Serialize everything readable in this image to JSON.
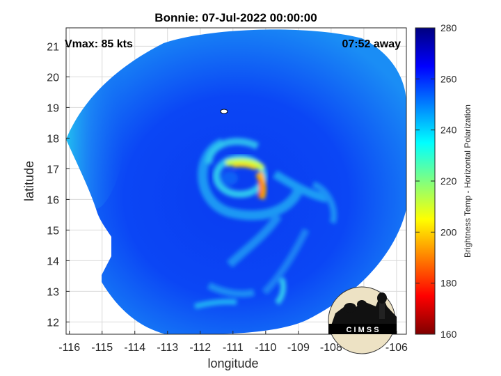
{
  "chart_data": {
    "type": "heatmap",
    "title": "Bonnie: 07-Jul-2022 00:00:00",
    "annotations": {
      "top_left": "Vmax: 85 kts",
      "top_right": "07:52 away"
    },
    "xlabel": "longitude",
    "ylabel": "latitude",
    "xlim": [
      -116.1,
      -105.7
    ],
    "ylim": [
      11.6,
      21.6
    ],
    "xticks": [
      -116,
      -115,
      -114,
      -113,
      -112,
      -111,
      -110,
      -109,
      -108,
      -107,
      -106
    ],
    "yticks": [
      12,
      13,
      14,
      15,
      16,
      17,
      18,
      19,
      20,
      21
    ],
    "grid": true,
    "colorbar": {
      "label": "Brightness Temp - Horizontal Polarization",
      "range": [
        160,
        280
      ],
      "ticks": [
        160,
        180,
        200,
        220,
        240,
        260,
        280
      ],
      "colormap": "jet",
      "colors": [
        "#7f0000",
        "#ff0000",
        "#ff8000",
        "#ffff00",
        "#80ff80",
        "#00ffff",
        "#0080ff",
        "#0000ff",
        "#00007f"
      ]
    },
    "background_tb": 258,
    "swath_edge_tb": 240,
    "storm_center": {
      "lon": -110.8,
      "lat": 16.7
    },
    "cold_features": [
      {
        "name": "eyewall-north",
        "lon": -110.5,
        "lat": 17.0,
        "tb": 205
      },
      {
        "name": "eyewall-east",
        "lon": -110.0,
        "lat": 16.3,
        "tb": 185
      },
      {
        "name": "eyewall-east-core",
        "lon": -109.95,
        "lat": 16.1,
        "tb": 175
      },
      {
        "name": "eye",
        "lon": -110.9,
        "lat": 16.75,
        "tb": 245
      }
    ],
    "logo_text": "C I M S S"
  }
}
